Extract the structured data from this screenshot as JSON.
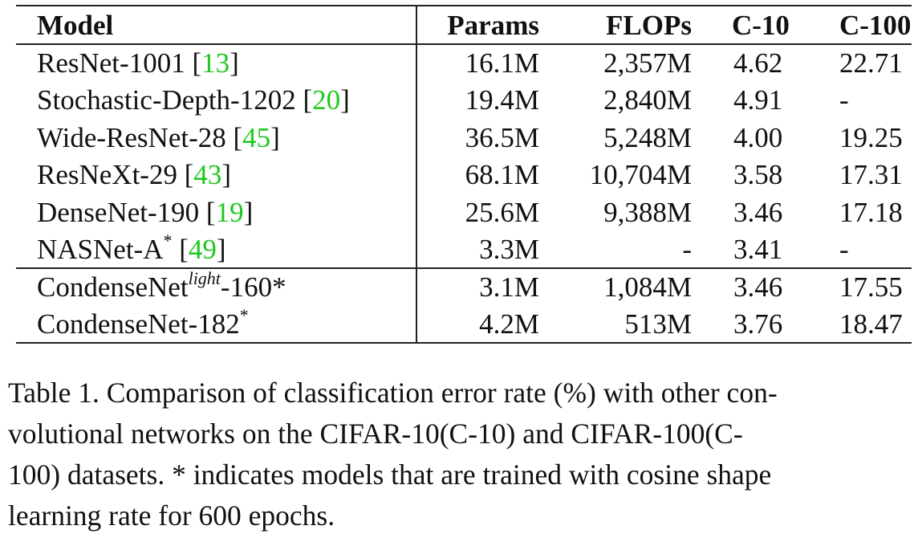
{
  "table": {
    "headers": {
      "model": "Model",
      "params": "Params",
      "flops": "FLOPs",
      "c10": "C-10",
      "c100": "C-100"
    },
    "group1": [
      {
        "name": "ResNet-1001",
        "ref": "13",
        "params": "16.1M",
        "flops": "2,357M",
        "c10": "4.62",
        "c100": "22.71"
      },
      {
        "name": "Stochastic-Depth-1202",
        "ref": "20",
        "params": "19.4M",
        "flops": "2,840M",
        "c10": "4.91",
        "c100": "-"
      },
      {
        "name": "Wide-ResNet-28",
        "ref": "45",
        "params": "36.5M",
        "flops": "5,248M",
        "c10": "4.00",
        "c100": "19.25"
      },
      {
        "name": "ResNeXt-29",
        "ref": "43",
        "params": "68.1M",
        "flops": "10,704M",
        "c10": "3.58",
        "c100": "17.31"
      },
      {
        "name": "DenseNet-190",
        "ref": "19",
        "params": "25.6M",
        "flops": "9,388M",
        "c10": "3.46",
        "c100": "17.18"
      },
      {
        "name": "NASNet-A",
        "sup": "*",
        "ref": "49",
        "params": "3.3M",
        "flops": "-",
        "c10": "3.41",
        "c100": "-"
      }
    ],
    "group2": [
      {
        "name_pre": "CondenseNet",
        "sup": "light",
        "name_post": "-160*",
        "params": "3.1M",
        "flops": "1,084M",
        "c10": "3.46",
        "c100": "17.55"
      },
      {
        "name": "CondenseNet-182",
        "sup": "*",
        "params": "4.2M",
        "flops": "513M",
        "c10": "3.76",
        "c100": "18.47"
      }
    ]
  },
  "caption": {
    "lines": [
      "Table 1. Comparison of classification error rate (%) with other con-",
      "volutional networks on the CIFAR-10(C-10) and CIFAR-100(C-",
      "100) datasets. * indicates models that are trained with cosine shape",
      "learning rate for 600 epochs."
    ]
  },
  "colors": {
    "reference_link": "#1ec81e",
    "text": "#111111"
  }
}
